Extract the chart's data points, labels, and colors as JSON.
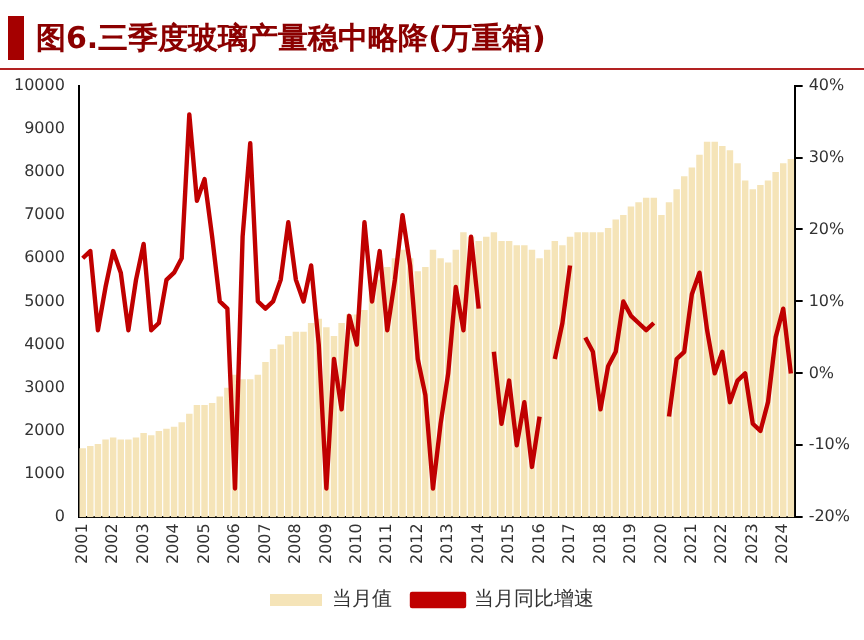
{
  "chart_data": {
    "type": "bar",
    "title": "图6.三季度玻璃产量稳中略降(万重箱)",
    "categories": [
      "2001",
      null,
      null,
      null,
      "2002",
      null,
      null,
      null,
      "2003",
      null,
      null,
      null,
      "2004",
      null,
      null,
      null,
      "2005",
      null,
      null,
      null,
      "2006",
      null,
      null,
      null,
      "2007",
      null,
      null,
      null,
      "2008",
      null,
      null,
      null,
      "2009",
      null,
      null,
      null,
      "2010",
      null,
      null,
      null,
      "2011",
      null,
      null,
      null,
      "2012",
      null,
      null,
      null,
      "2013",
      null,
      null,
      null,
      "2014",
      null,
      null,
      null,
      "2015",
      null,
      null,
      null,
      "2016",
      null,
      null,
      null,
      "2017",
      null,
      null,
      null,
      "2018",
      null,
      null,
      null,
      "2019",
      null,
      null,
      null,
      "2020",
      null,
      null,
      null,
      "2021",
      null,
      null,
      null,
      "2022",
      null,
      null,
      null,
      "2023",
      null,
      null,
      null,
      "2024",
      null
    ],
    "series": [
      {
        "name": "当月值",
        "color": "#f5e4b8",
        "values": [
          1600,
          1650,
          1700,
          1800,
          1850,
          1800,
          1800,
          1850,
          1950,
          1900,
          2000,
          2050,
          2100,
          2200,
          2400,
          2600,
          2600,
          2650,
          2800,
          3000,
          3300,
          3200,
          3200,
          3300,
          3600,
          3900,
          4000,
          4200,
          4300,
          4300,
          4500,
          4600,
          4400,
          4200,
          4500,
          4700,
          4700,
          4800,
          5200,
          5500,
          5800,
          6000,
          6200,
          6000,
          5700,
          5800,
          6200,
          6000,
          5900,
          6200,
          6600,
          6500,
          6400,
          6500,
          6600,
          6400,
          6400,
          6300,
          6300,
          6200,
          6000,
          6200,
          6400,
          6300,
          6500,
          6600,
          6600,
          6600,
          6600,
          6700,
          6900,
          7000,
          7200,
          7300,
          7400,
          7400,
          7000,
          7300,
          7600,
          7900,
          8100,
          8400,
          8700,
          8700,
          8600,
          8500,
          8200,
          7800,
          7600,
          7700,
          7800,
          8000,
          8200,
          8300
        ]
      },
      {
        "name": "当月同比增速",
        "type": "line",
        "axis": "y2",
        "color": "#c00000",
        "values": [
          16,
          17,
          6,
          12,
          17,
          14,
          6,
          13,
          18,
          6,
          7,
          13,
          14,
          16,
          36,
          24,
          27,
          19,
          10,
          9,
          -16,
          19,
          32,
          10,
          9,
          10,
          13,
          21,
          13,
          10,
          15,
          4,
          -16,
          2,
          -5,
          8,
          4,
          21,
          10,
          17,
          6,
          13,
          22,
          15,
          2,
          -3,
          -16,
          -7,
          0,
          12,
          6,
          19,
          9,
          null,
          3,
          -7,
          -1,
          -10,
          -4,
          -13,
          -6,
          null,
          2,
          7,
          15,
          null,
          5,
          3,
          -5,
          1,
          3,
          10,
          8,
          7,
          6,
          7,
          null,
          -6,
          2,
          3,
          11,
          14,
          6,
          0,
          3,
          -4,
          -1,
          0,
          -7,
          -8,
          -4,
          5,
          9,
          0
        ]
      }
    ],
    "ylim": [
      0,
      10000
    ],
    "yticks": [
      0,
      1000,
      2000,
      3000,
      4000,
      5000,
      6000,
      7000,
      8000,
      9000,
      10000
    ],
    "y2lim": [
      -20,
      40
    ],
    "y2ticks": [
      {
        "value": -20,
        "label": "-20%"
      },
      {
        "value": -10,
        "label": "-10%"
      },
      {
        "value": 0,
        "label": "0%"
      },
      {
        "value": 10,
        "label": "10%"
      },
      {
        "value": 20,
        "label": "20%"
      },
      {
        "value": 30,
        "label": "30%"
      },
      {
        "value": 40,
        "label": "40%"
      }
    ],
    "grid": false,
    "legend": "bottom"
  }
}
